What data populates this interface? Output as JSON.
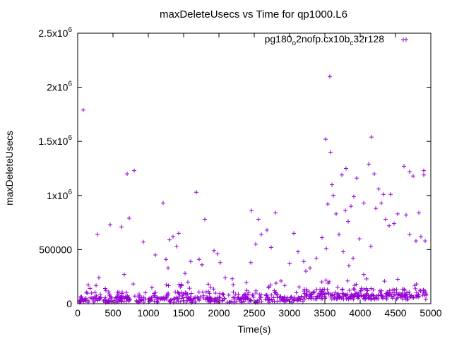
{
  "chart_data": {
    "type": "scatter",
    "title": "maxDeleteUsecs vs Time for qp1000.L6",
    "xlabel": "Time(s)",
    "ylabel": "maxDeleteUsecs",
    "xlim": [
      0,
      5000
    ],
    "ylim": [
      0,
      2500000
    ],
    "x_ticks": [
      0,
      500,
      1000,
      1500,
      2000,
      2500,
      3000,
      3500,
      4000,
      4500,
      5000
    ],
    "x_tick_labels": [
      "0",
      "500",
      "1000",
      "1500",
      "2000",
      "2500",
      "3000",
      "3500",
      "4000",
      "4500",
      "5000"
    ],
    "y_ticks": [
      0,
      500000,
      1000000,
      1500000,
      2000000,
      2500000
    ],
    "y_tick_labels": [
      "0",
      "500000",
      "1x10",
      "1.5x10",
      "2x10",
      "2.5x10"
    ],
    "y_tick_exponent": "6",
    "grid": false,
    "legend_position": "top-right",
    "series": [
      {
        "name": "pg180_o2nofp.cx10b_c32r128",
        "legend_parts": [
          "pg180",
          "o",
          "2nofp.cx10b",
          "c",
          "32r128"
        ],
        "color": "#9400d3",
        "marker": "plus",
        "outliers": {
          "x": [
            80,
            280,
            300,
            390,
            460,
            620,
            660,
            700,
            730,
            800,
            930,
            1100,
            1210,
            1280,
            1300,
            1350,
            1400,
            1430,
            1520,
            1600,
            1680,
            1720,
            1760,
            1800,
            1850,
            1930,
            1980,
            2020,
            2090,
            2460,
            2520,
            2560,
            2600,
            2680,
            2740,
            2800,
            2880,
            3060,
            3120,
            3200,
            3290,
            3380,
            3460,
            3510,
            3540,
            3570,
            3580,
            3600,
            3620,
            3660,
            3700,
            3740,
            3790,
            3800,
            3830,
            3870,
            3910,
            3950,
            3990,
            4050,
            4120,
            4160,
            4200,
            4220,
            4260,
            4300,
            4330,
            4360,
            4410,
            4430,
            4480,
            4530,
            4610,
            4620,
            4650,
            4700,
            4750,
            4790,
            4830,
            4860,
            4900,
            4920,
            4900,
            4700,
            3520,
            3760,
            3840,
            3900,
            4050,
            4150,
            2450,
            3230,
            1560,
            1250,
            2190,
            3000
          ],
          "y": [
            1790000,
            640000,
            240000,
            140000,
            730000,
            710000,
            270000,
            1200000,
            790000,
            1230000,
            570000,
            450000,
            930000,
            330000,
            590000,
            620000,
            530000,
            650000,
            280000,
            390000,
            1030000,
            410000,
            360000,
            780000,
            180000,
            490000,
            460000,
            380000,
            240000,
            860000,
            550000,
            780000,
            640000,
            680000,
            520000,
            840000,
            210000,
            650000,
            480000,
            390000,
            330000,
            420000,
            610000,
            1520000,
            920000,
            2100000,
            1400000,
            1100000,
            1000000,
            830000,
            640000,
            1190000,
            860000,
            1250000,
            760000,
            900000,
            990000,
            1160000,
            600000,
            930000,
            1290000,
            1540000,
            1200000,
            880000,
            1060000,
            930000,
            1010000,
            780000,
            720000,
            1010000,
            740000,
            830000,
            2440000,
            1270000,
            820000,
            1220000,
            1180000,
            580000,
            840000,
            620000,
            1230000,
            580000,
            1190000,
            640000,
            510000,
            480000,
            350000,
            420000,
            270000,
            530000,
            380000,
            300000,
            200000,
            410000,
            230000,
            370000
          ]
        },
        "baseline": "dense band of points between 0 and ~200000 across the full time range"
      }
    ]
  }
}
